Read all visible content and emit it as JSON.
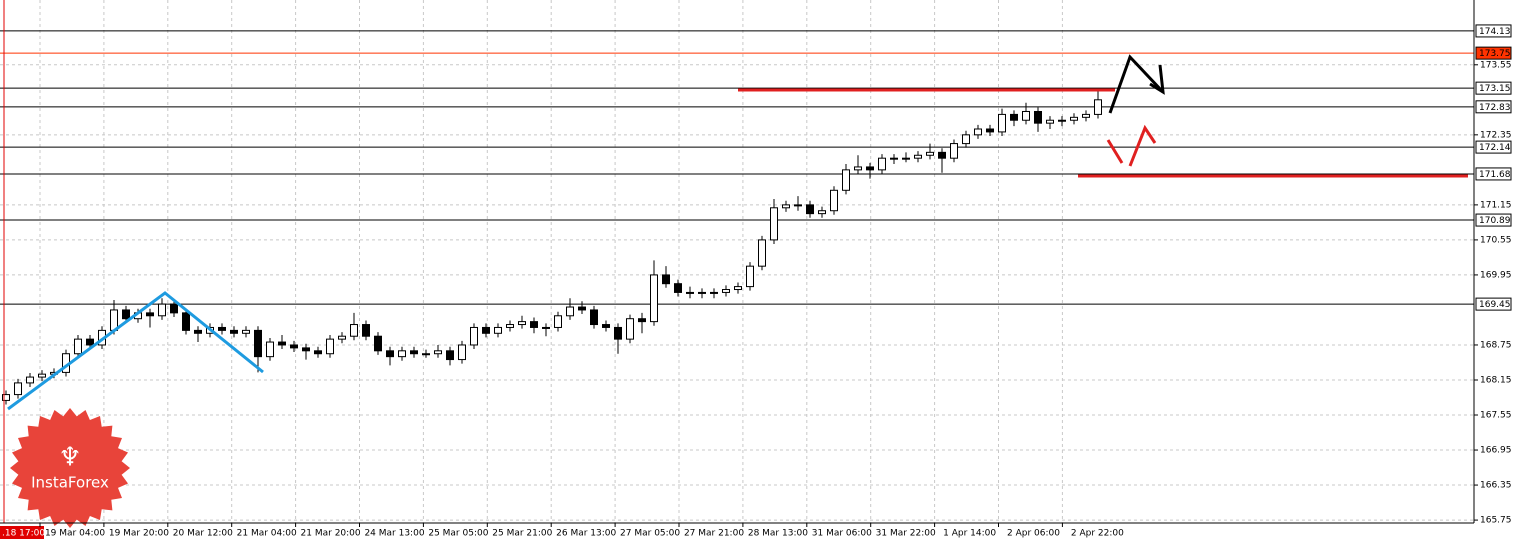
{
  "chart_data": {
    "type": "candlestick",
    "candles": [
      [
        167.8,
        167.97,
        167.73,
        167.9
      ],
      [
        167.9,
        168.17,
        167.83,
        168.1
      ],
      [
        168.1,
        168.27,
        168.03,
        168.2
      ],
      [
        168.2,
        168.32,
        168.13,
        168.25
      ],
      [
        168.25,
        168.35,
        168.18,
        168.28
      ],
      [
        168.28,
        168.67,
        168.21,
        168.6
      ],
      [
        168.6,
        168.92,
        168.53,
        168.85
      ],
      [
        168.85,
        168.92,
        168.68,
        168.75
      ],
      [
        168.75,
        169.07,
        168.68,
        169.0
      ],
      [
        169.0,
        169.52,
        168.93,
        169.35
      ],
      [
        169.35,
        169.42,
        169.13,
        169.2
      ],
      [
        169.2,
        169.37,
        169.13,
        169.3
      ],
      [
        169.3,
        169.37,
        169.05,
        169.25
      ],
      [
        169.25,
        169.55,
        169.18,
        169.45
      ],
      [
        169.45,
        169.52,
        169.23,
        169.3
      ],
      [
        169.3,
        169.37,
        168.93,
        169.0
      ],
      [
        169.0,
        169.07,
        168.8,
        168.95
      ],
      [
        168.95,
        169.12,
        168.88,
        169.05
      ],
      [
        169.05,
        169.12,
        168.93,
        169.0
      ],
      [
        169.0,
        169.07,
        168.88,
        168.95
      ],
      [
        168.95,
        169.07,
        168.88,
        169.0
      ],
      [
        169.0,
        169.07,
        168.28,
        168.55
      ],
      [
        168.55,
        168.87,
        168.48,
        168.8
      ],
      [
        168.8,
        168.92,
        168.68,
        168.75
      ],
      [
        168.75,
        168.82,
        168.63,
        168.7
      ],
      [
        168.7,
        168.77,
        168.5,
        168.65
      ],
      [
        168.65,
        168.72,
        168.53,
        168.6
      ],
      [
        168.6,
        168.92,
        168.53,
        168.85
      ],
      [
        168.85,
        168.97,
        168.78,
        168.9
      ],
      [
        168.9,
        169.3,
        168.83,
        169.1
      ],
      [
        169.1,
        169.17,
        168.83,
        168.9
      ],
      [
        168.9,
        168.97,
        168.58,
        168.65
      ],
      [
        168.65,
        168.72,
        168.4,
        168.55
      ],
      [
        168.55,
        168.72,
        168.48,
        168.65
      ],
      [
        168.65,
        168.72,
        168.53,
        168.6
      ],
      [
        168.6,
        168.67,
        168.53,
        168.6
      ],
      [
        168.6,
        168.75,
        168.53,
        168.65
      ],
      [
        168.65,
        168.72,
        168.4,
        168.5
      ],
      [
        168.5,
        168.82,
        168.43,
        168.75
      ],
      [
        168.75,
        169.12,
        168.68,
        169.05
      ],
      [
        169.05,
        169.12,
        168.88,
        168.95
      ],
      [
        168.95,
        169.12,
        168.88,
        169.05
      ],
      [
        169.05,
        169.17,
        168.98,
        169.1
      ],
      [
        169.1,
        169.25,
        169.03,
        169.15
      ],
      [
        169.15,
        169.22,
        168.95,
        169.05
      ],
      [
        169.05,
        169.12,
        168.9,
        169.05
      ],
      [
        169.05,
        169.32,
        168.98,
        169.25
      ],
      [
        169.25,
        169.55,
        169.18,
        169.4
      ],
      [
        169.4,
        169.5,
        169.28,
        169.35
      ],
      [
        169.35,
        169.42,
        169.03,
        169.1
      ],
      [
        169.1,
        169.17,
        168.98,
        169.05
      ],
      [
        169.05,
        169.12,
        168.6,
        168.85
      ],
      [
        168.85,
        169.27,
        168.78,
        169.2
      ],
      [
        169.2,
        169.3,
        168.95,
        169.15
      ],
      [
        169.15,
        170.2,
        169.08,
        169.95
      ],
      [
        169.95,
        170.1,
        169.73,
        169.8
      ],
      [
        169.8,
        169.87,
        169.58,
        169.65
      ],
      [
        169.65,
        169.75,
        169.55,
        169.65
      ],
      [
        169.65,
        169.72,
        169.55,
        169.65
      ],
      [
        169.65,
        169.72,
        169.55,
        169.65
      ],
      [
        169.65,
        169.77,
        169.58,
        169.7
      ],
      [
        169.7,
        169.82,
        169.63,
        169.75
      ],
      [
        169.75,
        170.17,
        169.68,
        170.1
      ],
      [
        170.1,
        170.62,
        170.03,
        170.55
      ],
      [
        170.55,
        171.25,
        170.48,
        171.1
      ],
      [
        171.1,
        171.22,
        171.03,
        171.15
      ],
      [
        171.15,
        171.3,
        171.05,
        171.15
      ],
      [
        171.15,
        171.22,
        170.93,
        171.0
      ],
      [
        171.0,
        171.12,
        170.93,
        171.05
      ],
      [
        171.05,
        171.47,
        170.98,
        171.4
      ],
      [
        171.4,
        171.85,
        171.33,
        171.75
      ],
      [
        171.75,
        172.0,
        171.68,
        171.8
      ],
      [
        171.8,
        171.87,
        171.6,
        171.75
      ],
      [
        171.75,
        172.02,
        171.68,
        171.95
      ],
      [
        171.95,
        172.02,
        171.85,
        171.95
      ],
      [
        171.95,
        172.05,
        171.88,
        171.95
      ],
      [
        171.95,
        172.07,
        171.88,
        172.0
      ],
      [
        172.0,
        172.2,
        171.93,
        172.05
      ],
      [
        172.05,
        172.12,
        171.7,
        171.95
      ],
      [
        171.95,
        172.27,
        171.88,
        172.2
      ],
      [
        172.2,
        172.42,
        172.13,
        172.35
      ],
      [
        172.35,
        172.52,
        172.28,
        172.45
      ],
      [
        172.45,
        172.52,
        172.33,
        172.4
      ],
      [
        172.4,
        172.8,
        172.33,
        172.7
      ],
      [
        172.7,
        172.77,
        172.5,
        172.6
      ],
      [
        172.6,
        172.9,
        172.53,
        172.75
      ],
      [
        172.75,
        172.82,
        172.4,
        172.55
      ],
      [
        172.55,
        172.67,
        172.45,
        172.6
      ],
      [
        172.6,
        172.67,
        172.5,
        172.6
      ],
      [
        172.6,
        172.72,
        172.53,
        172.65
      ],
      [
        172.65,
        172.77,
        172.58,
        172.7
      ],
      [
        172.7,
        173.15,
        172.63,
        172.95
      ]
    ],
    "bull_color": "#ffffff",
    "bear_color": "#000000",
    "ylim": [
      165.7,
      174.66
    ],
    "yticks": [
      165.75,
      166.35,
      166.95,
      167.55,
      168.15,
      168.75,
      169.95,
      170.55,
      171.15,
      172.35,
      173.55
    ],
    "grid": true,
    "levels": [
      {
        "value": 174.13,
        "color": "#000000"
      },
      {
        "value": 173.75,
        "color": "#ff3300"
      },
      {
        "value": 173.15,
        "color": "#000000"
      },
      {
        "value": 172.83,
        "color": "#000000"
      },
      {
        "value": 172.14,
        "color": "#000000"
      },
      {
        "value": 171.68,
        "color": "#000000"
      },
      {
        "value": 170.89,
        "color": "#000000"
      },
      {
        "value": 169.45,
        "color": "#000000"
      }
    ],
    "start_label": ".18 17:00",
    "x_labels": [
      "19 Mar 04:00",
      "19 Mar 20:00",
      "20 Mar 12:00",
      "21 Mar 04:00",
      "21 Mar 20:00",
      "24 Mar 13:00",
      "25 Mar 05:00",
      "25 Mar 21:00",
      "26 Mar 13:00",
      "27 Mar 05:00",
      "27 Mar 21:00",
      "28 Mar 13:00",
      "31 Mar 06:00",
      "31 Mar 22:00",
      "1 Apr 14:00",
      "2 Apr 06:00",
      "2 Apr 22:00"
    ],
    "logo": "InstaForex"
  }
}
